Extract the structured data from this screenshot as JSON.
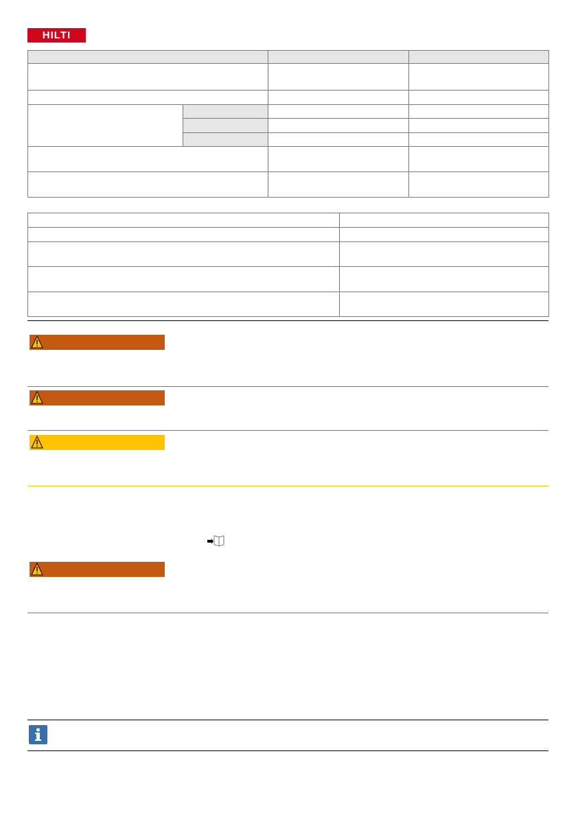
{
  "logo": {
    "text": "HILTI",
    "color": "#d2051e"
  },
  "colors": {
    "warning": "#c45a11",
    "caution": "#fec200",
    "table_header": "#e6e6e6",
    "border": "#7a7a7a",
    "info": "#3a6fa8"
  },
  "warnings": [
    {
      "level": "warning",
      "icon": "warning-triangle-icon"
    },
    {
      "level": "warning",
      "icon": "warning-triangle-icon"
    },
    {
      "level": "caution",
      "icon": "warning-triangle-icon"
    },
    {
      "level": "warning",
      "icon": "warning-triangle-icon"
    }
  ],
  "icons": {
    "manual": "read-manual-icon",
    "info": "info-icon"
  }
}
